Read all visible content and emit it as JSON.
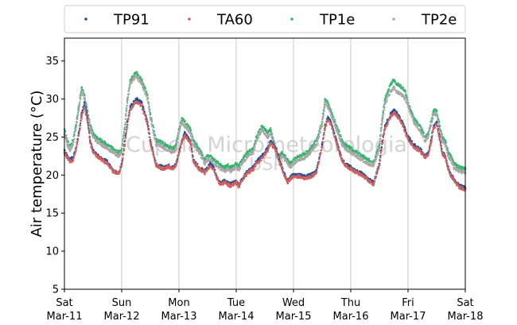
{
  "chart_data": {
    "type": "scatter",
    "ylabel": "Air temperature (°C)",
    "xlabel": "",
    "ylim": [
      5,
      38
    ],
    "xlim": [
      0,
      7
    ],
    "yticks": [
      5,
      10,
      15,
      20,
      25,
      30,
      35
    ],
    "xticks": [
      {
        "x": 0,
        "day": "Sat",
        "date": "Mar-11"
      },
      {
        "x": 1,
        "day": "Sun",
        "date": "Mar-12"
      },
      {
        "x": 2,
        "day": "Mon",
        "date": "Mar-13"
      },
      {
        "x": 3,
        "day": "Tue",
        "date": "Mar-14"
      },
      {
        "x": 4,
        "day": "Wed",
        "date": "Mar-15"
      },
      {
        "x": 5,
        "day": "Thu",
        "date": "Mar-16"
      },
      {
        "x": 6,
        "day": "Fri",
        "date": "Mar-17"
      },
      {
        "x": 7,
        "day": "Sat",
        "date": "Mar-18"
      }
    ],
    "grid": "vertical",
    "legend_position": "top",
    "watermark": "Cupola Micrometeorologia",
    "watermark_sub": "USP",
    "x_keys": [
      0,
      0.05,
      0.1,
      0.15,
      0.2,
      0.25,
      0.3,
      0.35,
      0.4,
      0.45,
      0.5,
      0.55,
      0.6,
      0.65,
      0.75,
      0.85,
      0.95,
      1.0,
      1.05,
      1.1,
      1.15,
      1.25,
      1.35,
      1.45,
      1.5,
      1.6,
      1.65,
      1.75,
      1.8,
      1.9,
      1.95,
      2.0,
      2.05,
      2.1,
      2.2,
      2.25,
      2.35,
      2.45,
      2.5,
      2.55,
      2.6,
      2.7,
      2.75,
      2.8,
      2.85,
      2.9,
      3.0,
      3.05,
      3.1,
      3.15,
      3.2,
      3.3,
      3.35,
      3.45,
      3.55,
      3.6,
      3.65,
      3.7,
      3.75,
      3.8,
      3.85,
      3.9,
      3.95,
      4.0,
      4.1,
      4.2,
      4.3,
      4.4,
      4.5,
      4.55,
      4.6,
      4.65,
      4.75,
      4.85,
      4.9,
      5.0,
      5.1,
      5.2,
      5.3,
      5.4,
      5.5,
      5.55,
      5.6,
      5.7,
      5.75,
      5.8,
      5.9,
      5.95,
      6.0,
      6.05,
      6.1,
      6.2,
      6.25,
      6.3,
      6.35,
      6.4,
      6.45,
      6.5,
      6.55,
      6.6,
      6.65,
      6.7,
      6.75,
      6.8,
      6.85,
      6.9,
      7.0
    ],
    "series": [
      {
        "name": "TP91",
        "color": "#1f4e9c",
        "values": [
          23.3,
          22.5,
          22.0,
          22.3,
          23.5,
          25.5,
          28.0,
          29.5,
          27.5,
          24.5,
          23.2,
          22.8,
          22.5,
          22.2,
          21.8,
          20.5,
          20.2,
          21.5,
          24.0,
          27.0,
          29.0,
          30.0,
          29.5,
          27.0,
          24.5,
          21.5,
          21.2,
          21.0,
          21.3,
          21.0,
          21.5,
          23.0,
          24.5,
          25.5,
          24.5,
          22.0,
          21.0,
          20.5,
          21.0,
          21.5,
          21.0,
          19.2,
          19.0,
          19.3,
          19.0,
          18.8,
          19.2,
          18.7,
          19.5,
          20.0,
          20.5,
          21.0,
          21.8,
          22.5,
          23.5,
          24.5,
          24.0,
          23.5,
          22.0,
          21.0,
          20.0,
          19.2,
          19.8,
          20.0,
          20.0,
          19.8,
          20.0,
          20.5,
          24.0,
          26.5,
          27.5,
          27.0,
          24.5,
          22.0,
          21.5,
          21.0,
          20.5,
          20.2,
          19.5,
          19.0,
          21.5,
          24.5,
          26.5,
          28.0,
          28.5,
          28.2,
          27.0,
          26.0,
          25.0,
          24.5,
          24.0,
          23.5,
          23.0,
          22.5,
          22.8,
          24.5,
          26.5,
          27.0,
          25.0,
          23.0,
          22.5,
          21.0,
          20.0,
          19.5,
          19.0,
          18.6,
          18.3
        ]
      },
      {
        "name": "TA60",
        "color": "#d1605e",
        "values": [
          23.0,
          22.3,
          21.8,
          22.0,
          23.2,
          25.2,
          27.6,
          29.0,
          27.2,
          24.3,
          23.0,
          22.6,
          22.3,
          22.0,
          21.6,
          20.5,
          20.2,
          21.3,
          23.8,
          26.6,
          28.6,
          29.6,
          29.1,
          26.7,
          24.2,
          21.3,
          21.0,
          20.8,
          21.1,
          20.8,
          21.3,
          22.8,
          24.3,
          25.2,
          24.3,
          21.8,
          20.8,
          20.3,
          20.8,
          21.2,
          20.8,
          19.0,
          18.8,
          19.1,
          18.8,
          18.6,
          19.0,
          18.5,
          19.3,
          19.8,
          20.3,
          20.8,
          21.5,
          22.2,
          23.2,
          24.2,
          23.7,
          23.2,
          21.8,
          20.8,
          19.8,
          19.0,
          19.6,
          19.8,
          19.8,
          19.6,
          19.8,
          20.3,
          23.7,
          26.2,
          27.2,
          26.7,
          24.2,
          21.8,
          21.3,
          20.8,
          20.3,
          20.0,
          19.3,
          18.8,
          21.3,
          24.2,
          26.2,
          27.7,
          28.2,
          27.9,
          26.7,
          25.7,
          24.7,
          24.2,
          23.7,
          23.2,
          22.8,
          22.3,
          22.6,
          24.2,
          26.2,
          26.7,
          24.7,
          22.8,
          22.3,
          20.8,
          19.8,
          19.3,
          18.8,
          18.4,
          18.1
        ]
      },
      {
        "name": "TP1e",
        "color": "#3cb371",
        "values": [
          26.0,
          24.5,
          23.8,
          24.5,
          26.5,
          29.0,
          31.5,
          30.5,
          28.5,
          26.5,
          25.5,
          25.0,
          24.8,
          24.5,
          24.0,
          23.5,
          23.0,
          23.5,
          26.0,
          30.0,
          32.5,
          33.5,
          32.5,
          30.5,
          28.0,
          24.5,
          24.5,
          24.0,
          23.8,
          23.5,
          24.0,
          26.0,
          27.5,
          27.0,
          26.0,
          24.5,
          23.5,
          22.0,
          22.5,
          22.5,
          22.0,
          21.5,
          21.2,
          21.0,
          21.3,
          21.0,
          21.5,
          21.2,
          22.0,
          22.5,
          23.0,
          23.5,
          25.0,
          26.5,
          25.5,
          26.0,
          24.5,
          23.0,
          22.5,
          23.0,
          22.5,
          22.0,
          21.5,
          22.0,
          22.5,
          22.8,
          23.5,
          24.5,
          27.0,
          30.0,
          29.5,
          28.5,
          26.5,
          24.5,
          24.0,
          23.5,
          23.0,
          22.5,
          22.0,
          21.8,
          24.0,
          27.5,
          30.0,
          32.0,
          32.5,
          32.0,
          31.5,
          31.0,
          29.5,
          28.5,
          27.5,
          26.5,
          25.8,
          25.0,
          25.5,
          27.0,
          28.5,
          28.5,
          26.5,
          25.0,
          24.5,
          23.0,
          22.5,
          21.5,
          21.2,
          21.0,
          20.8
        ]
      },
      {
        "name": "TP2e",
        "color": "#a8a8a8",
        "values": [
          25.5,
          24.0,
          23.3,
          24.0,
          26.0,
          28.5,
          31.0,
          30.0,
          28.0,
          26.0,
          25.0,
          24.5,
          24.3,
          24.0,
          23.5,
          23.0,
          22.5,
          23.0,
          25.5,
          29.5,
          32.0,
          33.0,
          32.0,
          30.0,
          27.5,
          24.0,
          24.0,
          23.5,
          23.3,
          23.0,
          23.5,
          25.5,
          27.0,
          26.5,
          25.5,
          24.0,
          23.0,
          21.5,
          22.0,
          22.0,
          21.5,
          21.0,
          20.7,
          20.5,
          20.8,
          20.5,
          21.0,
          20.7,
          21.5,
          22.0,
          22.5,
          23.0,
          24.5,
          26.0,
          25.0,
          25.5,
          24.0,
          22.5,
          22.0,
          22.5,
          22.0,
          21.5,
          21.0,
          21.5,
          22.0,
          22.3,
          23.0,
          24.0,
          26.5,
          29.5,
          29.0,
          28.0,
          26.0,
          24.0,
          23.5,
          23.0,
          22.5,
          22.0,
          21.5,
          21.3,
          23.5,
          27.0,
          29.5,
          31.0,
          31.5,
          31.0,
          30.5,
          30.0,
          29.0,
          28.0,
          27.0,
          26.0,
          25.3,
          24.5,
          25.0,
          26.5,
          28.0,
          28.0,
          26.0,
          24.5,
          24.0,
          22.5,
          22.0,
          21.0,
          20.7,
          20.5,
          20.3
        ]
      }
    ]
  }
}
